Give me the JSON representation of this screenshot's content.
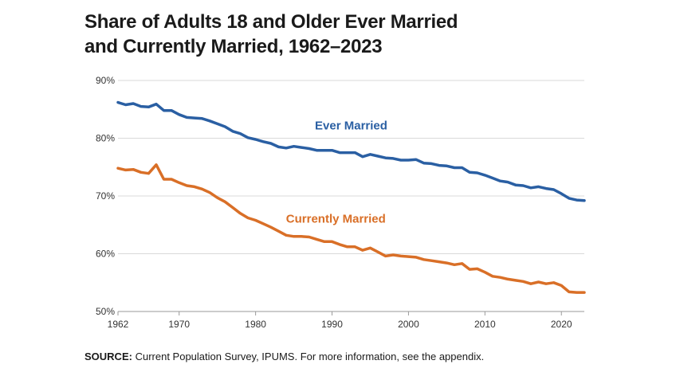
{
  "chart_data": {
    "type": "line",
    "title_line1": "Share of Adults 18 and Older Ever Married",
    "title_line2": "and Currently Married, 1962–2023",
    "xlabel": "",
    "ylabel": "",
    "xlim": [
      1962,
      2023
    ],
    "ylim": [
      50,
      90
    ],
    "x_ticks": [
      1962,
      1970,
      1980,
      1990,
      2000,
      2010,
      2020
    ],
    "y_ticks": [
      50,
      60,
      70,
      80,
      90
    ],
    "y_tick_labels": [
      "50%",
      "60%",
      "70%",
      "80%",
      "90%"
    ],
    "grid": "horizontal",
    "x": [
      1962,
      1963,
      1964,
      1965,
      1966,
      1967,
      1968,
      1969,
      1970,
      1971,
      1972,
      1973,
      1974,
      1975,
      1976,
      1977,
      1978,
      1979,
      1980,
      1981,
      1982,
      1983,
      1984,
      1985,
      1986,
      1987,
      1988,
      1989,
      1990,
      1991,
      1992,
      1993,
      1994,
      1995,
      1996,
      1997,
      1998,
      1999,
      2000,
      2001,
      2002,
      2003,
      2004,
      2005,
      2006,
      2007,
      2008,
      2009,
      2010,
      2011,
      2012,
      2013,
      2014,
      2015,
      2016,
      2017,
      2018,
      2019,
      2020,
      2021,
      2022,
      2023
    ],
    "series": [
      {
        "name": "Ever Married",
        "color": "#2a5fa3",
        "values": [
          86.2,
          85.8,
          86.0,
          85.5,
          85.4,
          85.9,
          84.8,
          84.8,
          84.1,
          83.6,
          83.5,
          83.4,
          83.0,
          82.5,
          82.0,
          81.2,
          80.8,
          80.1,
          79.8,
          79.4,
          79.1,
          78.5,
          78.3,
          78.6,
          78.4,
          78.2,
          77.9,
          77.9,
          77.9,
          77.5,
          77.5,
          77.5,
          76.8,
          77.2,
          76.9,
          76.6,
          76.5,
          76.2,
          76.2,
          76.3,
          75.7,
          75.6,
          75.3,
          75.2,
          74.9,
          74.9,
          74.1,
          74.0,
          73.6,
          73.1,
          72.6,
          72.4,
          71.9,
          71.8,
          71.4,
          71.6,
          71.3,
          71.1,
          70.4,
          69.6,
          69.3,
          69.2
        ]
      },
      {
        "name": "Currently Married",
        "color": "#d96f27",
        "values": [
          74.8,
          74.5,
          74.6,
          74.1,
          73.9,
          75.4,
          72.9,
          72.9,
          72.3,
          71.8,
          71.6,
          71.2,
          70.6,
          69.7,
          69.0,
          68.0,
          67.0,
          66.2,
          65.8,
          65.2,
          64.6,
          63.9,
          63.2,
          63.0,
          63.0,
          62.9,
          62.5,
          62.1,
          62.1,
          61.6,
          61.2,
          61.2,
          60.6,
          61.0,
          60.3,
          59.6,
          59.8,
          59.6,
          59.5,
          59.4,
          59.0,
          58.8,
          58.6,
          58.4,
          58.1,
          58.3,
          57.3,
          57.4,
          56.8,
          56.1,
          55.9,
          55.6,
          55.4,
          55.2,
          54.8,
          55.1,
          54.8,
          55.0,
          54.5,
          53.4,
          53.3,
          53.3
        ]
      }
    ],
    "series_labels": [
      {
        "series": "Ever Married",
        "text": "Ever Married",
        "at_x": 1992.5,
        "at_y": 81.5
      },
      {
        "series": "Currently Married",
        "text": "Currently Married",
        "at_x": 1990.5,
        "at_y": 65.4
      }
    ],
    "source_label": "SOURCE:",
    "source_text": "Current Population Survey, IPUMS. For more information, see the appendix."
  }
}
